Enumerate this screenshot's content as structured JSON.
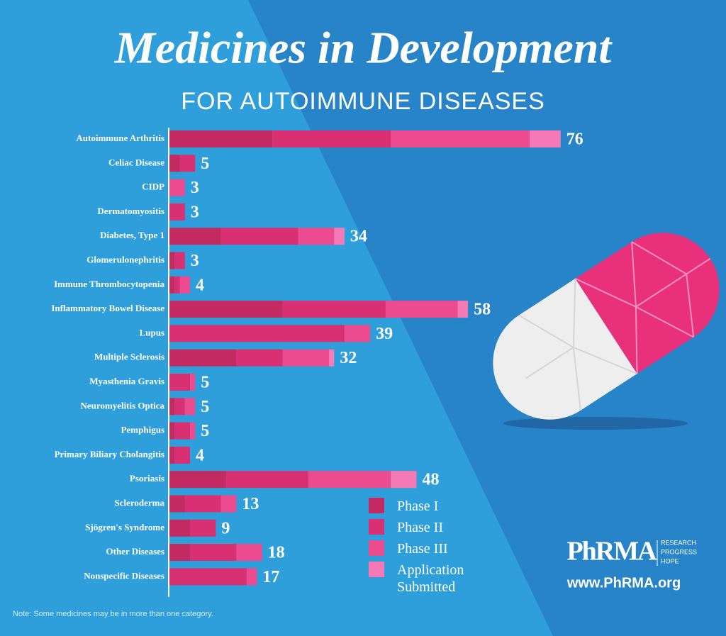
{
  "chart_data": {
    "type": "stacked-bar-horizontal",
    "title": "Medicines in Development",
    "subtitle": "FOR AUTOIMMUNE DISEASES",
    "categories": [
      "Autoimmune Arthritis",
      "Celiac Disease",
      "CIDP",
      "Dermatomyositis",
      "Diabetes, Type 1",
      "Glomerulonephritis",
      "Immune Thrombocytopenia",
      "Inflammatory Bowel Disease",
      "Lupus",
      "Multiple Sclerosis",
      "Myasthenia Gravis",
      "Neuromyelitis Optica",
      "Pemphigus",
      "Primary Biliary Cholangitis",
      "Psoriasis",
      "Scleroderma",
      "Sjögren's Syndrome",
      "Other Diseases",
      "Nonspecific Diseases"
    ],
    "series": [
      {
        "name": "Phase I",
        "color": "#c42a62",
        "values": [
          20,
          2,
          0,
          0,
          10,
          1,
          1,
          22,
          0,
          13,
          0,
          1,
          1,
          1,
          11,
          3,
          4,
          4,
          0
        ]
      },
      {
        "name": "Phase II",
        "color": "#d93073",
        "values": [
          23,
          3,
          0,
          3,
          15,
          2,
          1,
          20,
          34,
          9,
          4,
          2,
          3,
          3,
          16,
          7,
          5,
          9,
          15
        ]
      },
      {
        "name": "Phase III",
        "color": "#ec4b90",
        "values": [
          27,
          0,
          3,
          0,
          7,
          0,
          2,
          14,
          5,
          9,
          1,
          2,
          1,
          0,
          16,
          3,
          0,
          5,
          2
        ]
      },
      {
        "name": "Application Submitted",
        "color": "#f67ab6",
        "values": [
          6,
          0,
          0,
          0,
          2,
          0,
          0,
          2,
          0,
          1,
          0,
          0,
          0,
          0,
          5,
          0,
          0,
          0,
          0
        ]
      }
    ],
    "totals": [
      76,
      5,
      3,
      3,
      34,
      3,
      4,
      58,
      39,
      32,
      5,
      5,
      5,
      4,
      48,
      13,
      9,
      18,
      17
    ],
    "note": "Note: Some medicines may be in more than one category.",
    "logo": {
      "name": "PhRMA",
      "tagline": [
        "RESEARCH",
        "PROGRESS",
        "HOPE"
      ],
      "url": "www.PhRMA.org"
    }
  }
}
